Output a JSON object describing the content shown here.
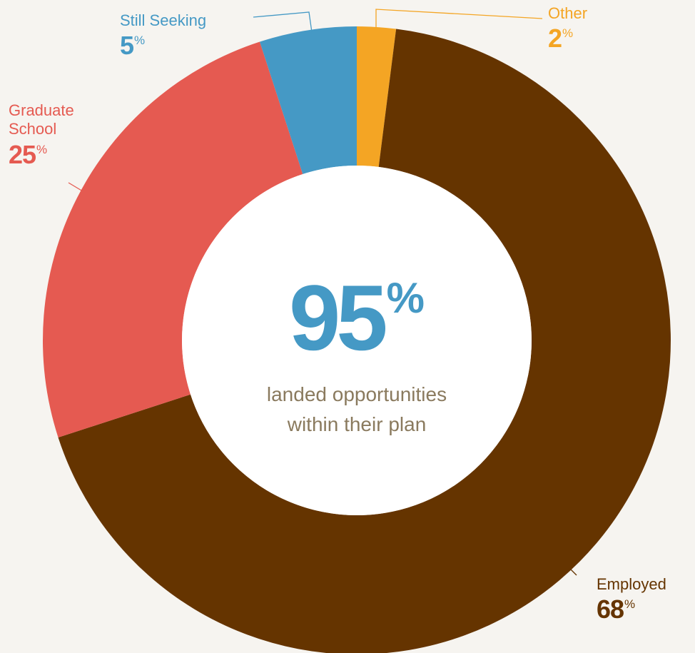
{
  "chart_data": {
    "type": "pie",
    "donut": true,
    "slices": [
      {
        "label": "Other",
        "value": 2,
        "color": "#f4a524"
      },
      {
        "label": "Employed",
        "value": 68,
        "color": "#653400"
      },
      {
        "label": "Graduate School",
        "value": 25,
        "color": "#e55a51"
      },
      {
        "label": "Still Seeking",
        "value": 5,
        "color": "#4599c5"
      }
    ],
    "center_value": "95",
    "center_value_unit": "%",
    "center_value_color": "#4599c5",
    "center_caption_line1": "landed opportunities",
    "center_caption_line2": "within their plan"
  },
  "labels": {
    "other": {
      "name": "Other",
      "pct": "2",
      "unit": "%",
      "color": "#f4a524"
    },
    "still_seeking": {
      "name": "Still Seeking",
      "pct": "5",
      "unit": "%",
      "color": "#4599c5"
    },
    "graduate_school": {
      "name_line1": "Graduate",
      "name_line2": "School",
      "pct": "25",
      "unit": "%",
      "color": "#e55a51"
    },
    "employed": {
      "name": "Employed",
      "pct": "68",
      "unit": "%",
      "color": "#653400"
    }
  }
}
